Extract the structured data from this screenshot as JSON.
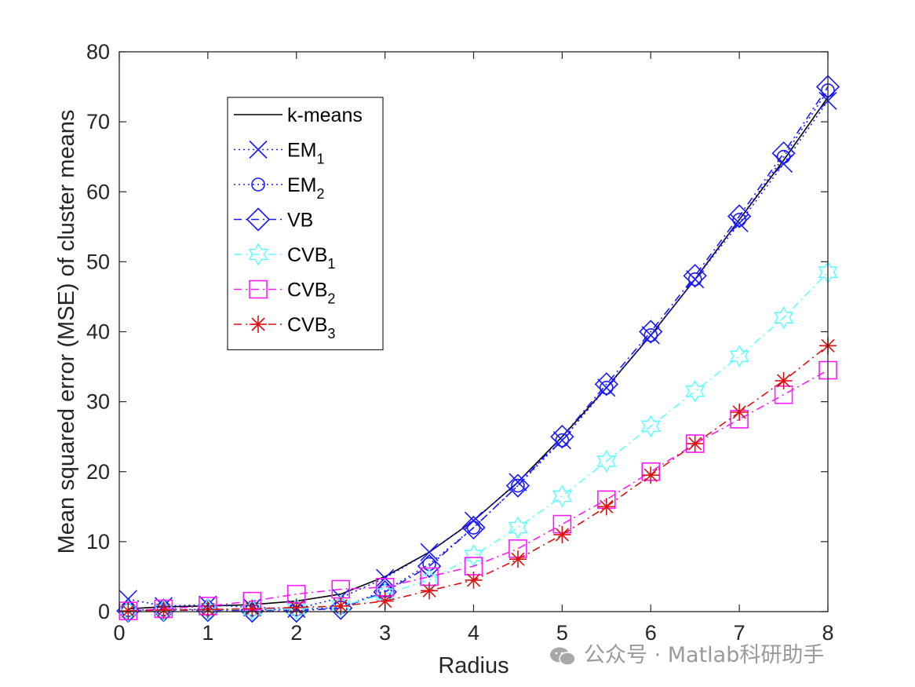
{
  "chart_data": {
    "type": "line",
    "xlabel": "Radius",
    "ylabel": "Mean squared error (MSE) of cluster means",
    "xlim": [
      0,
      8
    ],
    "ylim": [
      0,
      80
    ],
    "xticks": [
      "0",
      "1",
      "2",
      "3",
      "4",
      "5",
      "6",
      "7",
      "8"
    ],
    "yticks": [
      "0",
      "10",
      "20",
      "30",
      "40",
      "50",
      "60",
      "70",
      "80"
    ],
    "grid": false,
    "legend_position": "top-left",
    "x": [
      0.1,
      0.5,
      1,
      1.5,
      2,
      2.5,
      3,
      3.5,
      4,
      4.5,
      5,
      5.5,
      6,
      6.5,
      7,
      7.5,
      8
    ],
    "series": [
      {
        "name": "k-means",
        "label": "k-means",
        "sub": "",
        "color": "#000000",
        "dash": "solid",
        "marker": "none",
        "values": [
          0.4,
          0.7,
          0.8,
          1.0,
          1.5,
          2.5,
          5.0,
          8.5,
          13.0,
          18.5,
          25.0,
          32.0,
          39.5,
          47.5,
          56.0,
          64.5,
          73.5
        ]
      },
      {
        "name": "EM1",
        "label": "EM",
        "sub": "1",
        "color": "#1a1aff",
        "dash": "dotted",
        "marker": "x",
        "values": [
          1.8,
          0.8,
          1.0,
          0.6,
          0.4,
          2.0,
          4.8,
          8.5,
          13.0,
          18.5,
          24.5,
          32.0,
          39.5,
          47.5,
          55.5,
          64.0,
          73.0
        ]
      },
      {
        "name": "EM2",
        "label": "EM",
        "sub": "2",
        "color": "#1a1aff",
        "dash": "dotted",
        "marker": "circle",
        "values": [
          0.2,
          0.3,
          0.3,
          0.3,
          0.3,
          0.6,
          3.0,
          6.8,
          12.0,
          18.0,
          24.5,
          32.0,
          39.5,
          47.5,
          56.0,
          65.0,
          74.5
        ]
      },
      {
        "name": "VB",
        "label": "VB",
        "sub": "",
        "color": "#1a1aff",
        "dash": "dashdot",
        "marker": "diamond",
        "values": [
          0.1,
          0.2,
          0.2,
          0.1,
          0.1,
          0.5,
          2.8,
          6.5,
          12.0,
          18.0,
          25.0,
          32.5,
          40.0,
          48.0,
          56.5,
          65.5,
          75.0
        ]
      },
      {
        "name": "CVB1",
        "label": "CVB",
        "sub": "1",
        "color": "#66ffff",
        "dash": "dashdot",
        "marker": "hexagram",
        "values": [
          0.1,
          0.2,
          0.3,
          0.3,
          0.4,
          0.8,
          2.5,
          4.5,
          8.0,
          12.0,
          16.5,
          21.5,
          26.5,
          31.5,
          36.5,
          42.0,
          48.5
        ]
      },
      {
        "name": "CVB2",
        "label": "CVB",
        "sub": "2",
        "color": "#ff1aff",
        "dash": "dashdot",
        "marker": "square",
        "values": [
          0.1,
          0.4,
          0.8,
          1.5,
          2.5,
          3.2,
          3.5,
          5.0,
          6.5,
          9.0,
          12.5,
          16.0,
          20.0,
          24.0,
          27.5,
          31.0,
          34.5
        ]
      },
      {
        "name": "CVB3",
        "label": "CVB",
        "sub": "3",
        "color": "#dd1111",
        "dash": "dashdot",
        "marker": "star",
        "values": [
          0.1,
          0.2,
          0.3,
          0.4,
          0.6,
          0.8,
          1.5,
          3.0,
          4.5,
          7.5,
          11.0,
          15.0,
          19.5,
          24.0,
          28.5,
          33.0,
          38.0
        ]
      }
    ]
  },
  "watermark": {
    "text": "公众号 · Matlab科研助手"
  }
}
